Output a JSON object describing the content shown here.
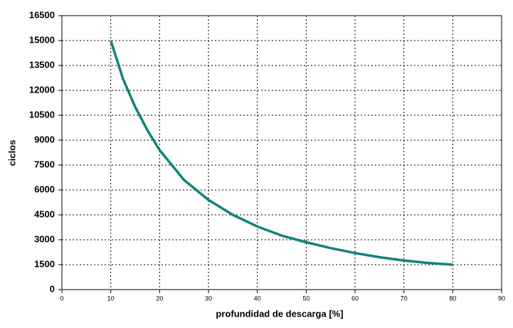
{
  "chart_data": {
    "type": "line",
    "x_label": "profundidad de descarga [%]",
    "y_label": "ciclos",
    "x": [
      10,
      12.5,
      15,
      17.5,
      20,
      25,
      30,
      35,
      40,
      45,
      50,
      55,
      60,
      65,
      70,
      75,
      80
    ],
    "series": [
      {
        "name": "ciclos",
        "color": "#13827c",
        "values": [
          15000,
          12700,
          11000,
          9600,
          8400,
          6600,
          5400,
          4500,
          3800,
          3250,
          2850,
          2500,
          2200,
          1950,
          1750,
          1600,
          1500
        ]
      }
    ],
    "xlim": [
      0,
      90
    ],
    "xticks": [
      0,
      10,
      20,
      30,
      40,
      50,
      60,
      70,
      80,
      90
    ],
    "ylim": [
      0,
      16500
    ],
    "yticks": [
      0,
      1500,
      3000,
      4500,
      6000,
      7500,
      9000,
      10500,
      12000,
      13500,
      15000,
      16500
    ],
    "grid": true
  }
}
